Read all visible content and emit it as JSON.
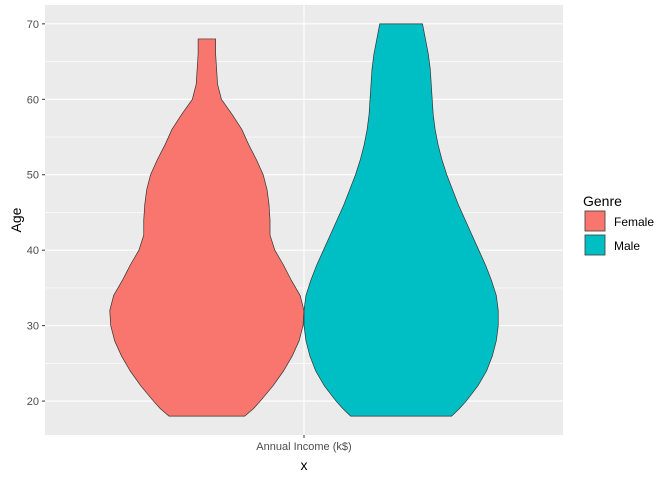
{
  "chart_data": {
    "type": "violin",
    "title": "",
    "xlabel": "x",
    "ylabel": "Age",
    "x_category": "Annual Income (k$)",
    "ylim": [
      15.5,
      72.5
    ],
    "yticks": [
      20,
      30,
      40,
      50,
      60,
      70
    ],
    "grid": true,
    "legend": {
      "title": "Genre",
      "placement": "right"
    },
    "series": [
      {
        "name": "Female",
        "color": "#F8766D",
        "min": 18,
        "max": 68,
        "density_profile": [
          [
            18,
            0.39
          ],
          [
            19,
            0.48
          ],
          [
            20,
            0.55
          ],
          [
            22,
            0.68
          ],
          [
            24,
            0.79
          ],
          [
            26,
            0.88
          ],
          [
            28,
            0.95
          ],
          [
            30,
            0.99
          ],
          [
            32,
            1.0
          ],
          [
            34,
            0.96
          ],
          [
            36,
            0.87
          ],
          [
            38,
            0.79
          ],
          [
            40,
            0.7
          ],
          [
            42,
            0.65
          ],
          [
            44,
            0.65
          ],
          [
            46,
            0.64
          ],
          [
            48,
            0.62
          ],
          [
            50,
            0.58
          ],
          [
            52,
            0.51
          ],
          [
            54,
            0.43
          ],
          [
            56,
            0.36
          ],
          [
            58,
            0.26
          ],
          [
            60,
            0.15
          ],
          [
            62,
            0.11
          ],
          [
            64,
            0.1
          ],
          [
            66,
            0.09
          ],
          [
            68,
            0.09
          ]
        ]
      },
      {
        "name": "Male",
        "color": "#00BFC4",
        "min": 18,
        "max": 70,
        "density_profile": [
          [
            18,
            0.52
          ],
          [
            19,
            0.6
          ],
          [
            20,
            0.67
          ],
          [
            22,
            0.79
          ],
          [
            24,
            0.88
          ],
          [
            26,
            0.94
          ],
          [
            28,
            0.98
          ],
          [
            30,
            1.0
          ],
          [
            32,
            1.0
          ],
          [
            34,
            0.98
          ],
          [
            36,
            0.93
          ],
          [
            38,
            0.87
          ],
          [
            40,
            0.8
          ],
          [
            42,
            0.73
          ],
          [
            44,
            0.66
          ],
          [
            46,
            0.59
          ],
          [
            48,
            0.53
          ],
          [
            50,
            0.47
          ],
          [
            52,
            0.42
          ],
          [
            54,
            0.38
          ],
          [
            56,
            0.35
          ],
          [
            58,
            0.33
          ],
          [
            60,
            0.32
          ],
          [
            62,
            0.31
          ],
          [
            64,
            0.3
          ],
          [
            66,
            0.28
          ],
          [
            68,
            0.25
          ],
          [
            70,
            0.22
          ]
        ]
      }
    ]
  }
}
